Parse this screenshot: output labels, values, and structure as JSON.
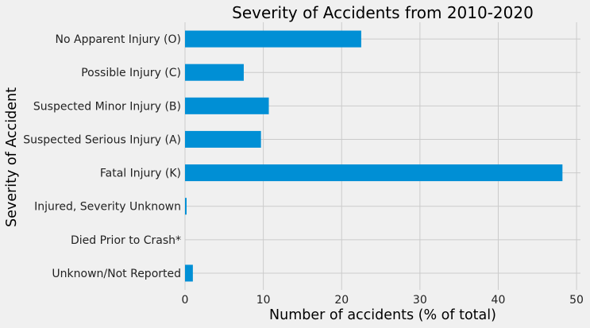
{
  "chart_data": {
    "type": "bar",
    "orientation": "horizontal",
    "title": "Severity of Accidents from 2010-2020",
    "xlabel": "Number of accidents (% of total)",
    "ylabel": "Severity of Accident",
    "categories": [
      "No Apparent Injury (O)",
      "Possible Injury (C)",
      "Suspected Minor Injury (B)",
      "Suspected Serious Injury (A)",
      "Fatal Injury (K)",
      "Injured, Severity Unknown",
      "Died Prior to Crash*",
      "Unknown/Not Reported"
    ],
    "values": [
      22.5,
      7.5,
      10.7,
      9.7,
      48.2,
      0.2,
      0.0,
      1.0
    ],
    "xlim": [
      0,
      50.5
    ],
    "xticks": [
      0,
      10,
      20,
      30,
      40,
      50
    ],
    "grid": true,
    "bar_color": "#008fd5"
  }
}
